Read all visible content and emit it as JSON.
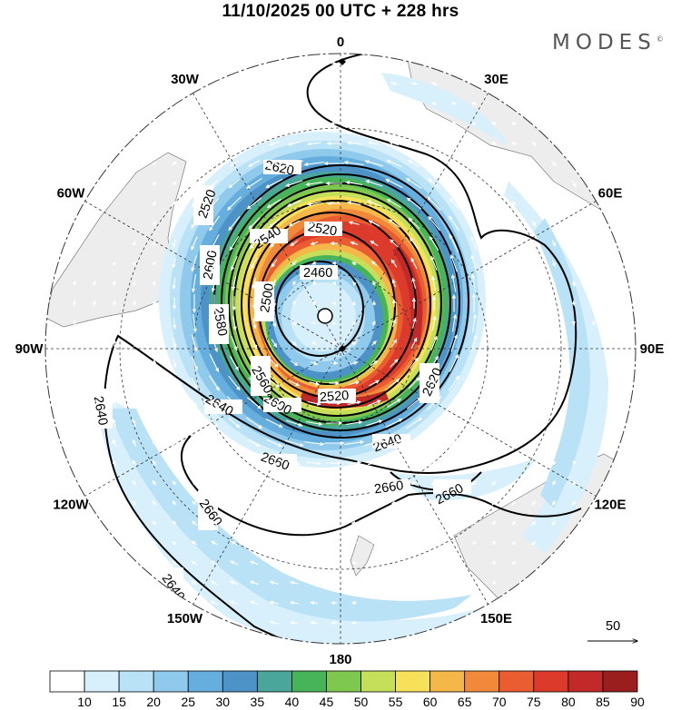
{
  "title": "11/10/2025  00 UTC  + 228 hrs",
  "brand": "MODES",
  "brand_mark": "©",
  "longitude_labels": [
    {
      "text": "0",
      "lon": 0
    },
    {
      "text": "30E",
      "lon": 30
    },
    {
      "text": "60E",
      "lon": 60
    },
    {
      "text": "90E",
      "lon": 90
    },
    {
      "text": "120E",
      "lon": 120
    },
    {
      "text": "150E",
      "lon": 150
    },
    {
      "text": "180",
      "lon": 180
    },
    {
      "text": "150W",
      "lon": -150
    },
    {
      "text": "120W",
      "lon": -120
    },
    {
      "text": "90W",
      "lon": -90
    },
    {
      "text": "60W",
      "lon": -60
    },
    {
      "text": "30W",
      "lon": -30
    }
  ],
  "contour_labels": [
    "2460",
    "2520",
    "2540",
    "2500",
    "2580",
    "2600",
    "2620",
    "2520",
    "2520",
    "2560",
    "2600",
    "2620",
    "2640",
    "2640",
    "2640",
    "2640",
    "2660",
    "2660",
    "2660",
    "2660",
    "2640"
  ],
  "vector_reference": {
    "label": "50"
  },
  "colorbar": {
    "labels": [
      "10",
      "15",
      "20",
      "25",
      "30",
      "35",
      "40",
      "45",
      "50",
      "55",
      "60",
      "65",
      "70",
      "75",
      "80",
      "85",
      "90"
    ],
    "colors": [
      "#ffffff",
      "#d7f0fb",
      "#b9e2f6",
      "#8fcaed",
      "#66aede",
      "#4d93c8",
      "#4aa59a",
      "#47b45a",
      "#7fc84f",
      "#c5df5a",
      "#f7e15a",
      "#f5b748",
      "#f08a3a",
      "#ea5d32",
      "#dc3b2c",
      "#c22a2a",
      "#9a1e1e"
    ]
  }
}
